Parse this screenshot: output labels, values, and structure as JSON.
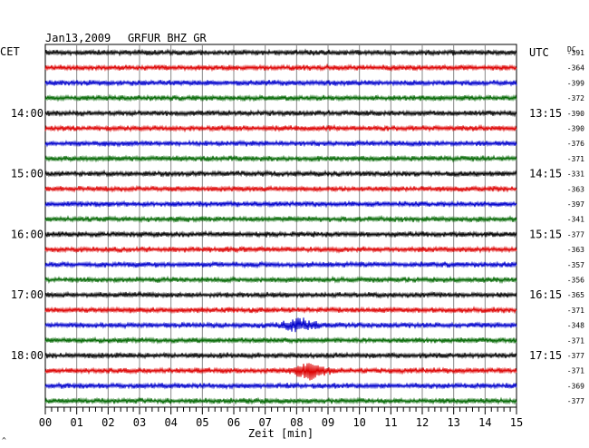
{
  "header": {
    "date": "Jan13,2009",
    "station": "GRFUR BHZ GR",
    "left_zone": "CET",
    "right_zone": "UTC",
    "dc_label": "DC"
  },
  "footer": {
    "marker": "^"
  },
  "chart_data": {
    "type": "line",
    "title": "Jan13,2009   GRFUR BHZ GR",
    "xlabel": "Zeit [min]",
    "xlim": [
      0,
      15
    ],
    "x_ticks": [
      "00",
      "01",
      "02",
      "03",
      "04",
      "05",
      "06",
      "07",
      "08",
      "09",
      "10",
      "11",
      "12",
      "13",
      "14",
      "15"
    ],
    "grid": true,
    "line_colors": [
      "#000000",
      "#dd0000",
      "#0000cc",
      "#006600"
    ],
    "left_hour_labels": [
      {
        "trace": 4,
        "text": "14:00"
      },
      {
        "trace": 8,
        "text": "15:00"
      },
      {
        "trace": 12,
        "text": "16:00"
      },
      {
        "trace": 16,
        "text": "17:00"
      },
      {
        "trace": 20,
        "text": "18:00"
      }
    ],
    "right_hour_labels": [
      {
        "trace": 0,
        "text": "UTC"
      },
      {
        "trace": 4,
        "text": "13:15"
      },
      {
        "trace": 8,
        "text": "14:15"
      },
      {
        "trace": 12,
        "text": "15:15"
      },
      {
        "trace": 16,
        "text": "16:15"
      },
      {
        "trace": 20,
        "text": "17:15"
      }
    ],
    "dc_offsets": [
      -391,
      -364,
      -399,
      -372,
      -390,
      -390,
      -376,
      -371,
      -331,
      -363,
      -397,
      -341,
      -377,
      -363,
      -357,
      -356,
      -365,
      -371,
      -348,
      -371,
      -377,
      -371,
      -369,
      -377
    ],
    "events": [
      {
        "trace": 18,
        "minute": 8.1,
        "amplitude": 2.2
      },
      {
        "trace": 21,
        "minute": 8.4,
        "amplitude": 3.0
      }
    ]
  }
}
